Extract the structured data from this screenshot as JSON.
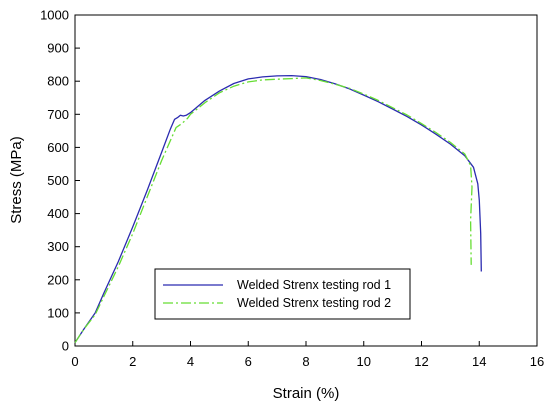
{
  "chart_data": {
    "type": "line",
    "xlabel": "Strain (%)",
    "ylabel": "Stress (MPa)",
    "xlim": [
      0,
      16
    ],
    "ylim": [
      0,
      1000
    ],
    "x_ticks": [
      0,
      2,
      4,
      6,
      8,
      10,
      12,
      14,
      16
    ],
    "y_ticks": [
      0,
      100,
      200,
      300,
      400,
      500,
      600,
      700,
      800,
      900,
      1000
    ],
    "grid": false,
    "legend_position": "lower-left",
    "series": [
      {
        "name": "Welded Strenx testing rod 1",
        "color": "#2b2bb0",
        "style": "solid",
        "x": [
          0.0,
          0.3,
          0.7,
          1.0,
          1.5,
          2.0,
          2.5,
          3.0,
          3.3,
          3.45,
          3.55,
          3.65,
          3.75,
          3.85,
          4.0,
          4.5,
          5.0,
          5.5,
          6.0,
          6.5,
          7.0,
          7.5,
          8.0,
          8.5,
          9.0,
          9.5,
          10.0,
          10.5,
          11.0,
          11.5,
          12.0,
          12.5,
          13.0,
          13.5,
          13.8,
          13.95,
          14.0,
          14.05,
          14.07
        ],
        "y": [
          10,
          50,
          100,
          160,
          255,
          360,
          470,
          585,
          655,
          685,
          690,
          697,
          695,
          697,
          705,
          742,
          770,
          793,
          807,
          813,
          816,
          817,
          814,
          805,
          792,
          777,
          758,
          738,
          716,
          693,
          668,
          640,
          610,
          575,
          540,
          490,
          440,
          340,
          225
        ]
      },
      {
        "name": "Welded Strenx testing rod 2",
        "color": "#66dd33",
        "style": "dashdot",
        "x": [
          0.0,
          0.3,
          0.7,
          1.0,
          1.5,
          2.0,
          2.5,
          3.0,
          3.3,
          3.5,
          3.7,
          3.9,
          4.0,
          4.5,
          5.0,
          5.5,
          6.0,
          6.5,
          7.0,
          7.5,
          8.0,
          8.5,
          9.0,
          9.5,
          10.0,
          10.5,
          11.0,
          11.5,
          12.0,
          12.5,
          13.0,
          13.5,
          13.7,
          13.75,
          13.7,
          13.72
        ],
        "y": [
          10,
          50,
          95,
          150,
          240,
          340,
          450,
          560,
          620,
          660,
          672,
          688,
          700,
          735,
          765,
          785,
          798,
          804,
          806,
          808,
          810,
          802,
          791,
          779,
          761,
          742,
          720,
          698,
          672,
          645,
          615,
          580,
          545,
          480,
          380,
          245
        ]
      }
    ]
  }
}
